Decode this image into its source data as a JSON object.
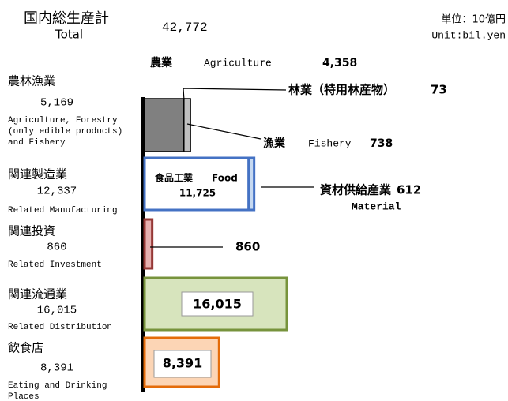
{
  "chart_data": {
    "type": "bar",
    "title": "国内総生産計",
    "title_en": "Total",
    "total": 42772,
    "total_label": "42,772",
    "unit": "単位：10億円",
    "unit_en": "Unit:bil.yen",
    "categories": [
      {
        "name": "農林漁業",
        "value": 5169,
        "value_label": "5,169",
        "name_en": [
          "Agriculture, Forestry",
          "(only edible products)",
          "and Fishery"
        ]
      },
      {
        "name": "関連製造業",
        "value": 12337,
        "value_label": "12,337",
        "name_en": [
          "Related Manufacturing"
        ]
      },
      {
        "name": "関連投資",
        "value": 860,
        "name_en": [
          "Related Investment"
        ]
      },
      {
        "name": "関連流通業",
        "value": 16015,
        "value_label": "16,015",
        "name_en": [
          "Related Distribution"
        ]
      },
      {
        "name": "飲食店",
        "value": 8391,
        "value_label": "8,391",
        "name_en": [
          "Eating and Drinking",
          "Places"
        ]
      }
    ],
    "stacks": [
      [
        {
          "name": "農業",
          "name_en": "Agriculture",
          "value": 4358,
          "value_label": "4,358",
          "color": "#808080",
          "border": "#000000"
        },
        {
          "name": "林業（特用林産物）",
          "value": 73,
          "color": "#d9d9d9",
          "border": "#000000"
        },
        {
          "name": "漁業",
          "name_en": "Fishery",
          "value": 738,
          "color": "#bfbfbf",
          "border": "#000000"
        }
      ],
      [
        {
          "name": "食品工業",
          "name_en": "Food",
          "value": 11725,
          "value_label": "11,725",
          "color": "#ffffff",
          "border": "#4472c4"
        },
        {
          "name": "資材供給産業",
          "name_en": "Material",
          "value": 612,
          "color": "#c6d9f1",
          "border": "#4472c4"
        }
      ],
      [
        {
          "value": 860,
          "color": "#e6b0b0",
          "border": "#953735"
        }
      ],
      [
        {
          "value": 16015,
          "value_label": "16,015",
          "color": "#d7e4bd",
          "border": "#77933c"
        }
      ],
      [
        {
          "value": 8391,
          "value_label": "8,391",
          "color": "#fcd5b5",
          "border": "#e46c0a"
        }
      ]
    ]
  }
}
